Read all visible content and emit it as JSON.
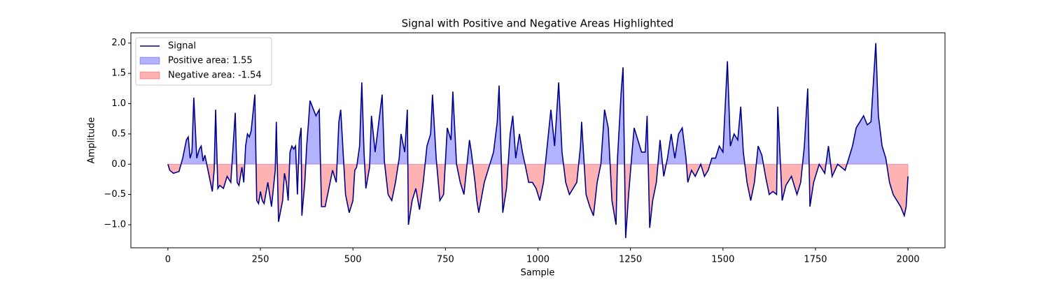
{
  "chart_data": {
    "type": "signal-area",
    "title": "Signal with Positive and Negative Areas Highlighted",
    "x_label": "Sample",
    "y_label": "Amplitude",
    "x": [
      0,
      5,
      15,
      30,
      40,
      50,
      55,
      60,
      65,
      70,
      78,
      85,
      90,
      95,
      100,
      105,
      110,
      115,
      120,
      125,
      129,
      135,
      140,
      150,
      160,
      170,
      182,
      187,
      192,
      200,
      205,
      210,
      215,
      220,
      225,
      235,
      240,
      245,
      250,
      255,
      260,
      270,
      280,
      290,
      293,
      299,
      310,
      315,
      320,
      325,
      330,
      335,
      340,
      345,
      350,
      355,
      360,
      362,
      370,
      375,
      380,
      384,
      400,
      409,
      415,
      425,
      435,
      445,
      455,
      462,
      467,
      480,
      490,
      500,
      505,
      510,
      518,
      524,
      530,
      535,
      545,
      550,
      555,
      560,
      579,
      585,
      595,
      605,
      615,
      625,
      630,
      640,
      647,
      650,
      660,
      670,
      680,
      690,
      700,
      710,
      715,
      725,
      735,
      745,
      755,
      765,
      770,
      780,
      790,
      800,
      815,
      820,
      830,
      835,
      840,
      855,
      865,
      880,
      890,
      895,
      905,
      915,
      925,
      932,
      940,
      950,
      958,
      965,
      975,
      985,
      995,
      1005,
      1015,
      1025,
      1035,
      1045,
      1056,
      1065,
      1075,
      1085,
      1095,
      1105,
      1115,
      1118,
      1130,
      1140,
      1150,
      1160,
      1170,
      1180,
      1190,
      1200,
      1211,
      1215,
      1225,
      1230,
      1237,
      1245,
      1255,
      1260,
      1270,
      1280,
      1290,
      1295,
      1302,
      1310,
      1320,
      1330,
      1340,
      1350,
      1360,
      1370,
      1380,
      1390,
      1400,
      1405,
      1415,
      1425,
      1440,
      1450,
      1460,
      1470,
      1480,
      1490,
      1500,
      1512,
      1520,
      1530,
      1540,
      1548,
      1555,
      1565,
      1575,
      1585,
      1595,
      1605,
      1615,
      1625,
      1635,
      1645,
      1648,
      1660,
      1670,
      1685,
      1700,
      1710,
      1720,
      1729,
      1735,
      1745,
      1760,
      1775,
      1785,
      1795,
      1810,
      1830,
      1850,
      1860,
      1870,
      1880,
      1890,
      1900,
      1913,
      1920,
      1930,
      1940,
      1950,
      1960,
      1970,
      1980,
      1990,
      1995,
      2000
    ],
    "series": [
      {
        "name": "Signal",
        "color": "#00008b",
        "values": [
          0.0,
          -0.1,
          -0.15,
          -0.12,
          0.1,
          0.4,
          0.45,
          0.1,
          0.2,
          1.1,
          0.1,
          0.25,
          0.3,
          0.05,
          0.15,
          0.0,
          -0.15,
          -0.3,
          -0.45,
          -0.1,
          0.9,
          -0.4,
          -0.35,
          -0.4,
          -0.2,
          -0.3,
          0.85,
          -0.3,
          -0.35,
          -0.05,
          -0.3,
          0.3,
          0.5,
          0.45,
          0.55,
          1.15,
          -0.6,
          -0.65,
          -0.45,
          -0.6,
          -0.65,
          -0.3,
          -0.7,
          -0.1,
          0.7,
          -0.95,
          -0.6,
          -0.15,
          -0.3,
          -0.6,
          0.2,
          0.3,
          0.25,
          0.3,
          -0.5,
          0.4,
          0.6,
          -0.85,
          -0.3,
          0.3,
          0.7,
          1.05,
          0.8,
          0.9,
          -0.7,
          -0.7,
          -0.4,
          -0.1,
          -0.3,
          0.7,
          0.9,
          -0.5,
          -0.8,
          -0.6,
          -0.1,
          -0.05,
          0.3,
          1.35,
          0.2,
          -0.4,
          -0.05,
          0.8,
          0.5,
          0.2,
          1.15,
          0.05,
          -0.5,
          -0.6,
          -0.3,
          0.1,
          0.5,
          0.2,
          0.9,
          -1.0,
          -0.6,
          -0.4,
          -0.75,
          -0.3,
          0.3,
          0.5,
          1.15,
          0.1,
          -0.6,
          -0.5,
          0.6,
          0.4,
          1.2,
          0.0,
          -0.3,
          -0.5,
          0.4,
          0.2,
          -0.3,
          -0.6,
          -0.8,
          -0.3,
          -0.1,
          0.2,
          0.7,
          1.3,
          -0.8,
          -0.4,
          0.5,
          0.8,
          0.1,
          0.5,
          0.2,
          0.0,
          -0.3,
          -0.3,
          -0.4,
          -0.6,
          -0.3,
          0.3,
          0.9,
          0.3,
          1.35,
          0.2,
          -0.3,
          -0.5,
          -0.4,
          -0.3,
          0.3,
          0.7,
          -0.5,
          -0.7,
          -0.85,
          -0.3,
          0.0,
          0.9,
          0.6,
          -0.6,
          -1.0,
          0.1,
          1.2,
          1.6,
          -1.22,
          -0.5,
          0.25,
          0.6,
          0.4,
          0.2,
          0.2,
          0.8,
          -1.05,
          -0.6,
          -0.3,
          0.4,
          -0.2,
          0.1,
          0.5,
          0.1,
          0.5,
          0.6,
          0.1,
          -0.3,
          -0.1,
          -0.2,
          0.0,
          -0.2,
          -0.1,
          0.1,
          0.1,
          0.3,
          0.2,
          1.7,
          0.3,
          0.5,
          0.4,
          0.95,
          0.2,
          -0.3,
          -0.6,
          -0.3,
          0.3,
          0.15,
          -0.2,
          -0.5,
          -0.45,
          -0.5,
          0.95,
          -0.6,
          -0.35,
          -0.2,
          -0.5,
          -0.3,
          0.3,
          1.25,
          -0.7,
          -0.3,
          0.0,
          -0.15,
          0.3,
          -0.2,
          0.0,
          -0.1,
          0.3,
          0.6,
          0.7,
          0.8,
          0.65,
          0.7,
          2.0,
          0.8,
          0.3,
          0.1,
          -0.3,
          -0.5,
          -0.6,
          -0.7,
          -0.85,
          -0.7,
          -0.2
        ]
      }
    ],
    "positive_fill": {
      "name": "Positive area: 1.55",
      "color": "#0000ff",
      "alpha": 0.3
    },
    "negative_fill": {
      "name": "Negative area: -1.54",
      "color": "#ff0000",
      "alpha": 0.3
    },
    "xlim": [
      -100,
      2100
    ],
    "xticks": [
      0,
      250,
      500,
      750,
      1000,
      1250,
      1500,
      1750,
      2000
    ],
    "ylim": [
      -1.38,
      2.17
    ],
    "yticks": [
      {
        "value": -1,
        "label": "−1.0"
      },
      {
        "value": -0.5,
        "label": "−0.5"
      },
      {
        "value": 0,
        "label": "0.0"
      },
      0.5,
      {
        "value": 1,
        "label": "1.0"
      },
      1.5,
      {
        "value": 2,
        "label": "2.0"
      }
    ],
    "legend": "upper left"
  }
}
